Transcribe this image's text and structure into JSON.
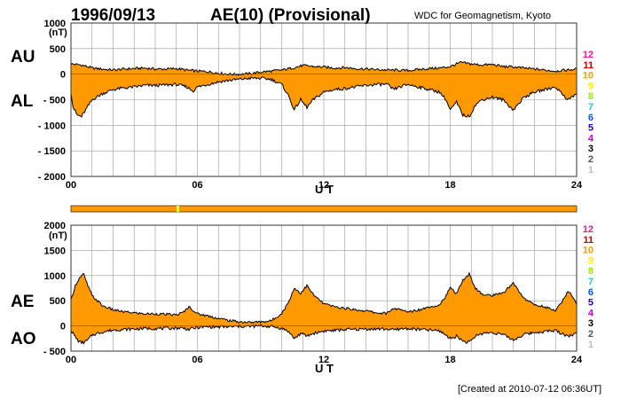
{
  "header": {
    "date": "1996/09/13",
    "title": "AE(10) (Provisional)",
    "organization": "WDC for Geomagnetism, Kyoto"
  },
  "footer": {
    "created": "[Created at 2010-07-12 06:36UT]"
  },
  "colors": {
    "fill": "#ff9900",
    "grid": "#999999",
    "frame": "#333333",
    "marker": "#ffff44"
  },
  "station_levels": {
    "labels": [
      "12",
      "11",
      "10",
      "9",
      "8",
      "7",
      "6",
      "5",
      "4",
      "3",
      "2",
      "1"
    ],
    "colors": [
      "#ff1493",
      "#cc0000",
      "#ff9900",
      "#ffee00",
      "#99ee00",
      "#22cccc",
      "#0055ff",
      "#2200cc",
      "#cc00cc",
      "#000000",
      "#555555",
      "#bbbbbb"
    ]
  },
  "chart_data": [
    {
      "type": "area",
      "panel": "AU/AL",
      "series_labels": [
        "AU",
        "AL"
      ],
      "unit": "(nT)",
      "xlabel": "U T",
      "xlim": [
        0,
        24
      ],
      "ylim": [
        -2000,
        1000
      ],
      "xticks": [
        "00",
        "06",
        "12",
        "18",
        "24"
      ],
      "yticks": [
        {
          "v": 1000,
          "label": "1000"
        },
        {
          "v": 500,
          "label": "500"
        },
        {
          "v": 0,
          "label": "0"
        },
        {
          "v": -500,
          "label": "- 500"
        },
        {
          "v": -1000,
          "label": "- 1000"
        },
        {
          "v": -1500,
          "label": "- 1500"
        },
        {
          "v": -2000,
          "label": "- 2000"
        }
      ],
      "grid": true,
      "upper": {
        "name": "AU",
        "x": [
          0,
          0.5,
          1,
          1.5,
          2,
          2.5,
          3,
          3.5,
          4,
          4.5,
          5,
          5.5,
          6,
          6.5,
          7,
          7.5,
          8,
          8.5,
          9,
          9.5,
          10,
          10.5,
          11,
          11.5,
          12,
          12.5,
          13,
          13.5,
          14,
          14.5,
          15,
          15.5,
          16,
          16.5,
          17,
          17.5,
          18,
          18.5,
          19,
          19.5,
          20,
          20.5,
          21,
          21.5,
          22,
          22.5,
          23,
          23.5,
          24
        ],
        "values": [
          200,
          180,
          120,
          100,
          80,
          100,
          110,
          120,
          100,
          100,
          110,
          80,
          60,
          50,
          20,
          0,
          0,
          10,
          40,
          60,
          80,
          120,
          170,
          150,
          140,
          120,
          130,
          110,
          100,
          90,
          80,
          80,
          70,
          90,
          110,
          120,
          150,
          230,
          200,
          180,
          190,
          150,
          140,
          120,
          100,
          80,
          60,
          80,
          100
        ]
      },
      "lower": {
        "name": "AL",
        "x": [
          0,
          0.1,
          0.3,
          0.5,
          0.7,
          1,
          1.5,
          2,
          2.5,
          3,
          3.5,
          4,
          4.5,
          5,
          5.5,
          5.8,
          6,
          6.5,
          7,
          7.5,
          8,
          8.5,
          9,
          9.5,
          10,
          10.3,
          10.6,
          10.9,
          11.2,
          11.5,
          12,
          12.5,
          13,
          13.5,
          14,
          14.5,
          15,
          15.3,
          15.6,
          16,
          16.5,
          17,
          17.5,
          17.8,
          18,
          18.3,
          18.6,
          18.9,
          19.2,
          19.5,
          20,
          20.5,
          21,
          21.5,
          22,
          22.5,
          23,
          23.3,
          23.6,
          24
        ],
        "values": [
          -350,
          -650,
          -800,
          -830,
          -700,
          -500,
          -380,
          -300,
          -270,
          -250,
          -220,
          -220,
          -210,
          -200,
          -250,
          -330,
          -250,
          -200,
          -150,
          -120,
          -100,
          -80,
          -80,
          -100,
          -200,
          -400,
          -700,
          -500,
          -650,
          -500,
          -350,
          -300,
          -280,
          -250,
          -220,
          -200,
          -200,
          -300,
          -250,
          -200,
          -250,
          -300,
          -350,
          -500,
          -700,
          -550,
          -800,
          -830,
          -600,
          -500,
          -450,
          -500,
          -700,
          -450,
          -350,
          -300,
          -250,
          -380,
          -500,
          -380
        ]
      }
    },
    {
      "type": "area",
      "panel": "AE/AO",
      "series_labels": [
        "AE",
        "AO"
      ],
      "unit": "(nT)",
      "xlabel": "U T",
      "xlim": [
        0,
        24
      ],
      "ylim": [
        -500,
        2000
      ],
      "xticks": [
        "00",
        "06",
        "12",
        "18",
        "24"
      ],
      "yticks": [
        {
          "v": 2000,
          "label": "2000"
        },
        {
          "v": 1500,
          "label": "1500"
        },
        {
          "v": 1000,
          "label": "1000"
        },
        {
          "v": 500,
          "label": "500"
        },
        {
          "v": 0,
          "label": "0"
        },
        {
          "v": -500,
          "label": "- 500"
        }
      ],
      "grid": true,
      "upper": {
        "name": "AE",
        "x": [
          0,
          0.2,
          0.4,
          0.6,
          0.8,
          1,
          1.5,
          2,
          2.5,
          3,
          3.5,
          4,
          4.5,
          5,
          5.3,
          5.6,
          6,
          6.5,
          7,
          7.5,
          8,
          8.5,
          9,
          9.5,
          10,
          10.3,
          10.6,
          10.9,
          11.2,
          11.5,
          12,
          12.5,
          13,
          13.5,
          14,
          14.5,
          15,
          15.3,
          15.6,
          16,
          16.5,
          17,
          17.5,
          17.8,
          18,
          18.3,
          18.6,
          18.9,
          19.2,
          19.5,
          20,
          20.5,
          21,
          21.5,
          22,
          22.5,
          23,
          23.3,
          23.6,
          24
        ],
        "values": [
          500,
          800,
          950,
          1030,
          800,
          600,
          400,
          320,
          280,
          260,
          240,
          240,
          230,
          220,
          260,
          380,
          240,
          200,
          150,
          110,
          80,
          70,
          80,
          100,
          250,
          450,
          750,
          650,
          800,
          620,
          440,
          380,
          350,
          320,
          300,
          260,
          250,
          350,
          320,
          280,
          320,
          380,
          420,
          600,
          750,
          650,
          900,
          1030,
          750,
          630,
          600,
          650,
          850,
          550,
          420,
          380,
          300,
          480,
          700,
          450
        ]
      },
      "lower": {
        "name": "AO",
        "x": [
          0,
          0.2,
          0.4,
          0.6,
          0.8,
          1,
          1.5,
          2,
          2.5,
          3,
          3.5,
          4,
          4.5,
          5,
          5.3,
          5.6,
          6,
          6.5,
          7,
          7.5,
          8,
          8.5,
          9,
          9.5,
          10,
          10.3,
          10.6,
          10.9,
          11.2,
          11.5,
          12,
          12.5,
          13,
          13.5,
          14,
          14.5,
          15,
          15.3,
          15.6,
          16,
          16.5,
          17,
          17.5,
          17.8,
          18,
          18.3,
          18.6,
          18.9,
          19.2,
          19.5,
          20,
          20.5,
          21,
          21.5,
          22,
          22.5,
          23,
          23.3,
          23.6,
          24
        ],
        "values": [
          -80,
          -220,
          -320,
          -330,
          -280,
          -180,
          -120,
          -80,
          -70,
          -60,
          -50,
          -50,
          -50,
          -40,
          -40,
          -70,
          -30,
          -20,
          -20,
          -20,
          -10,
          -10,
          0,
          -10,
          -50,
          -100,
          -250,
          -150,
          -200,
          -150,
          -100,
          -90,
          -70,
          -70,
          -60,
          -60,
          -60,
          -80,
          -60,
          -50,
          -70,
          -80,
          -100,
          -180,
          -250,
          -200,
          -300,
          -330,
          -200,
          -150,
          -130,
          -170,
          -280,
          -170,
          -130,
          -110,
          -90,
          -150,
          -200,
          -150
        ]
      }
    }
  ]
}
